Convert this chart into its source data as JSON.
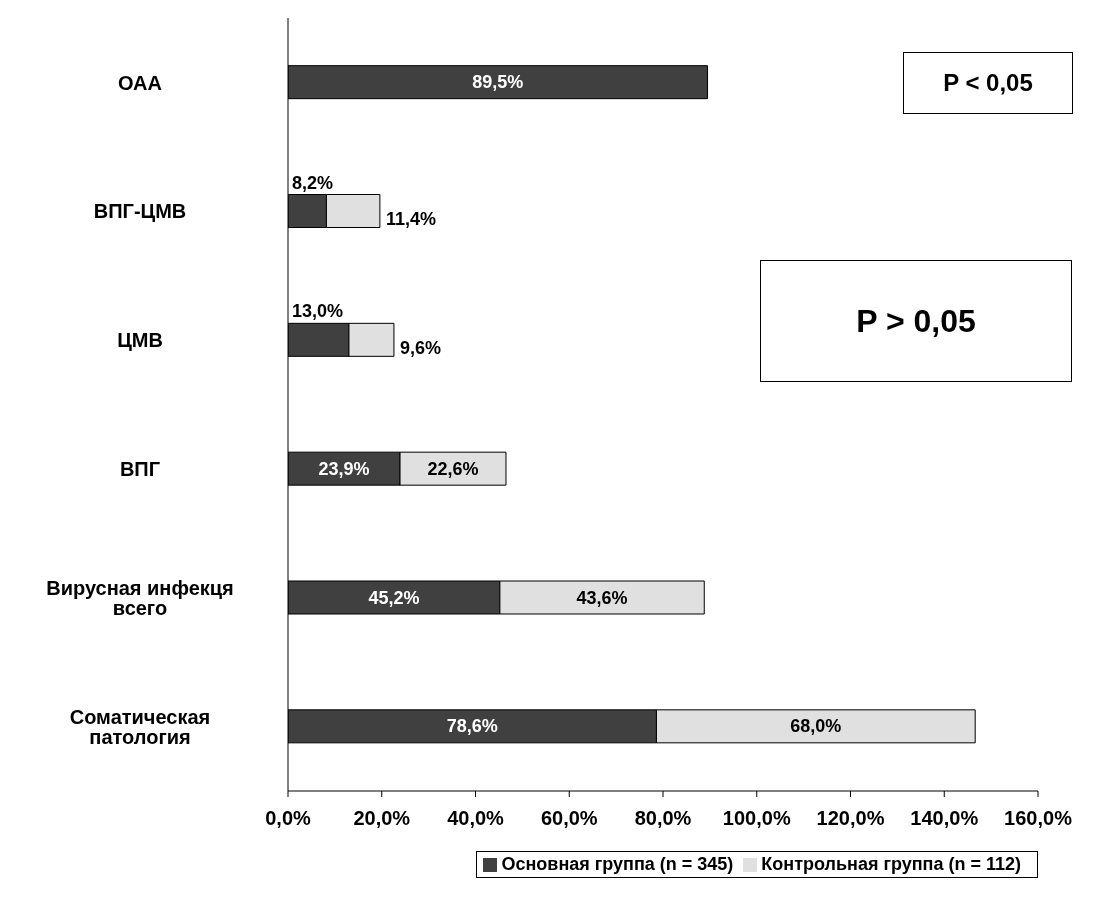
{
  "chart_data": {
    "type": "bar",
    "orientation": "horizontal",
    "stacked": true,
    "categories": [
      "ОАА",
      "ВПГ-ЦМВ",
      "ЦМВ",
      "ВПГ",
      "Вирусная инфекця всего",
      "Соматическая патология"
    ],
    "series": [
      {
        "name": "Основная группа (n = 345)",
        "color": "#404040",
        "values": [
          89.5,
          8.2,
          13.0,
          23.9,
          45.2,
          78.6
        ],
        "value_labels": [
          "89,5%",
          "8,2%",
          "13,0%",
          "23,9%",
          "45,2%",
          "78,6%"
        ]
      },
      {
        "name": "Контрольная группа  (n = 112)",
        "color": "#e0e0e0",
        "values": [
          null,
          11.4,
          9.6,
          22.6,
          43.6,
          68.0
        ],
        "value_labels": [
          null,
          "11,4%",
          "9,6%",
          "22,6%",
          "43,6%",
          "68,0%"
        ]
      }
    ],
    "xlim": [
      0,
      160
    ],
    "xticks": [
      {
        "value": 0,
        "label": "0,0%"
      },
      {
        "value": 20,
        "label": "20,0%"
      },
      {
        "value": 40,
        "label": "40,0%"
      },
      {
        "value": 60,
        "label": "60,0%"
      },
      {
        "value": 80,
        "label": "80,0%"
      },
      {
        "value": 100,
        "label": "100,0%"
      },
      {
        "value": 120,
        "label": "120,0%"
      },
      {
        "value": 140,
        "label": "140,0%"
      },
      {
        "value": 160,
        "label": "160,0%"
      }
    ],
    "annotations": [
      "P < 0,05",
      "P > 0,05"
    ],
    "legend": "bottom",
    "grid": false
  }
}
